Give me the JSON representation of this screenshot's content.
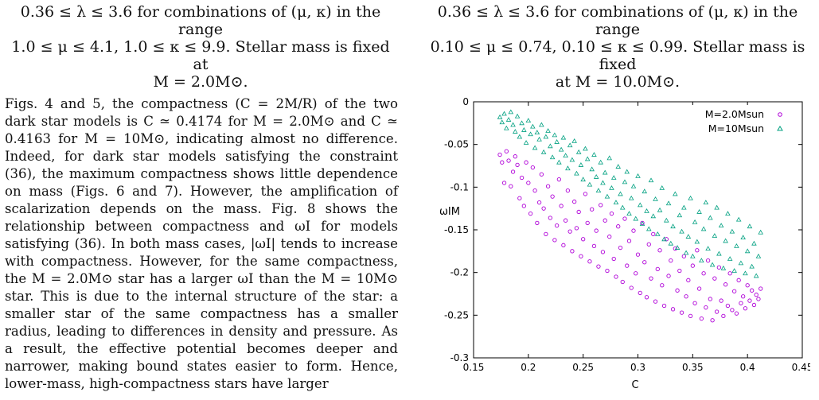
{
  "captions": {
    "left": [
      "0.36 ≤ λ ≤ 3.6 for combinations of (μ, κ) in the range",
      "1.0 ≤ μ ≤ 4.1, 1.0 ≤ κ ≤ 9.9. Stellar mass is fixed at",
      "M = 2.0M⊙."
    ],
    "right": [
      "0.36 ≤ λ ≤ 3.6 for combinations of (μ, κ) in the range",
      "0.10 ≤ μ ≤ 0.74, 0.10 ≤ κ ≤ 0.99. Stellar mass is fixed",
      "at M = 10.0M⊙."
    ]
  },
  "body_text": "Figs. 4 and 5, the compactness (C = 2M/R) of the two dark star models is C ≃ 0.4174 for M = 2.0M⊙ and C ≃ 0.4163 for M = 10M⊙, indicating almost no difference. Indeed, for dark star models satisfying the constraint (36), the maximum compactness shows little dependence on mass (Figs. 6 and 7). However, the amplification of scalarization depends on the mass. Fig. 8 shows the relationship between compactness and ωI for models satisfying (36). In both mass cases, |ωI| tends to increase with compactness. However, for the same compactness, the M = 2.0M⊙ star has a larger ωI than the M = 10M⊙ star. This is due to the internal structure of the star: a smaller star of the same compactness has a smaller radius, leading to differences in density and pressure. As a result, the effective potential becomes deeper and narrower, making bound states easier to form. Hence, lower-mass, high-compactness stars have larger",
  "colors": {
    "series_2": "#b000d8",
    "series_10": "#00a080",
    "axis": "#000000"
  },
  "chart_data": {
    "type": "scatter",
    "xlabel": "C",
    "ylabel": "ωIM",
    "xlim": [
      0.15,
      0.45
    ],
    "ylim": [
      -0.3,
      0
    ],
    "xticks": [
      "0.15",
      "0.2",
      "0.25",
      "0.3",
      "0.35",
      "0.4",
      "0.45"
    ],
    "yticks": [
      "0",
      "-0.05",
      "-0.1",
      "-0.15",
      "-0.2",
      "-0.25",
      "-0.3"
    ],
    "legend_position": "top-right",
    "grid": false,
    "series": [
      {
        "name": "M=2.0Msun",
        "marker": "circle",
        "points": [
          [
            0.174,
            -0.062
          ],
          [
            0.176,
            -0.071
          ],
          [
            0.178,
            -0.095
          ],
          [
            0.18,
            -0.058
          ],
          [
            0.182,
            -0.069
          ],
          [
            0.184,
            -0.099
          ],
          [
            0.186,
            -0.082
          ],
          [
            0.188,
            -0.064
          ],
          [
            0.19,
            -0.074
          ],
          [
            0.192,
            -0.113
          ],
          [
            0.194,
            -0.089
          ],
          [
            0.196,
            -0.122
          ],
          [
            0.198,
            -0.071
          ],
          [
            0.2,
            -0.095
          ],
          [
            0.202,
            -0.131
          ],
          [
            0.204,
            -0.077
          ],
          [
            0.206,
            -0.104
          ],
          [
            0.208,
            -0.142
          ],
          [
            0.21,
            -0.118
          ],
          [
            0.212,
            -0.085
          ],
          [
            0.214,
            -0.125
          ],
          [
            0.216,
            -0.155
          ],
          [
            0.218,
            -0.099
          ],
          [
            0.22,
            -0.136
          ],
          [
            0.222,
            -0.111
          ],
          [
            0.224,
            -0.162
          ],
          [
            0.226,
            -0.145
          ],
          [
            0.228,
            -0.091
          ],
          [
            0.23,
            -0.122
          ],
          [
            0.232,
            -0.168
          ],
          [
            0.234,
            -0.139
          ],
          [
            0.236,
            -0.104
          ],
          [
            0.238,
            -0.152
          ],
          [
            0.24,
            -0.175
          ],
          [
            0.242,
            -0.117
          ],
          [
            0.244,
            -0.148
          ],
          [
            0.246,
            -0.129
          ],
          [
            0.248,
            -0.181
          ],
          [
            0.25,
            -0.161
          ],
          [
            0.252,
            -0.108
          ],
          [
            0.254,
            -0.142
          ],
          [
            0.256,
            -0.187
          ],
          [
            0.258,
            -0.126
          ],
          [
            0.26,
            -0.169
          ],
          [
            0.262,
            -0.151
          ],
          [
            0.264,
            -0.193
          ],
          [
            0.266,
            -0.121
          ],
          [
            0.268,
            -0.176
          ],
          [
            0.27,
            -0.139
          ],
          [
            0.272,
            -0.198
          ],
          [
            0.274,
            -0.158
          ],
          [
            0.276,
            -0.131
          ],
          [
            0.278,
            -0.184
          ],
          [
            0.28,
            -0.205
          ],
          [
            0.282,
            -0.146
          ],
          [
            0.284,
            -0.171
          ],
          [
            0.286,
            -0.211
          ],
          [
            0.288,
            -0.137
          ],
          [
            0.29,
            -0.192
          ],
          [
            0.292,
            -0.163
          ],
          [
            0.294,
            -0.218
          ],
          [
            0.296,
            -0.151
          ],
          [
            0.298,
            -0.201
          ],
          [
            0.3,
            -0.179
          ],
          [
            0.302,
            -0.224
          ],
          [
            0.304,
            -0.142
          ],
          [
            0.306,
            -0.188
          ],
          [
            0.308,
            -0.229
          ],
          [
            0.31,
            -0.167
          ],
          [
            0.312,
            -0.207
          ],
          [
            0.314,
            -0.155
          ],
          [
            0.316,
            -0.234
          ],
          [
            0.318,
            -0.196
          ],
          [
            0.32,
            -0.174
          ],
          [
            0.322,
            -0.215
          ],
          [
            0.324,
            -0.239
          ],
          [
            0.326,
            -0.161
          ],
          [
            0.328,
            -0.204
          ],
          [
            0.33,
            -0.186
          ],
          [
            0.332,
            -0.243
          ],
          [
            0.334,
            -0.172
          ],
          [
            0.336,
            -0.221
          ],
          [
            0.338,
            -0.198
          ],
          [
            0.34,
            -0.247
          ],
          [
            0.342,
            -0.181
          ],
          [
            0.344,
            -0.228
          ],
          [
            0.346,
            -0.209
          ],
          [
            0.348,
            -0.251
          ],
          [
            0.35,
            -0.192
          ],
          [
            0.352,
            -0.236
          ],
          [
            0.354,
            -0.174
          ],
          [
            0.356,
            -0.219
          ],
          [
            0.358,
            -0.254
          ],
          [
            0.36,
            -0.201
          ],
          [
            0.362,
            -0.241
          ],
          [
            0.364,
            -0.186
          ],
          [
            0.366,
            -0.231
          ],
          [
            0.368,
            -0.256
          ],
          [
            0.37,
            -0.207
          ],
          [
            0.372,
            -0.246
          ],
          [
            0.374,
            -0.194
          ],
          [
            0.376,
            -0.233
          ],
          [
            0.378,
            -0.251
          ],
          [
            0.38,
            -0.214
          ],
          [
            0.382,
            -0.239
          ],
          [
            0.384,
            -0.201
          ],
          [
            0.386,
            -0.244
          ],
          [
            0.388,
            -0.222
          ],
          [
            0.39,
            -0.248
          ],
          [
            0.392,
            -0.209
          ],
          [
            0.394,
            -0.236
          ],
          [
            0.396,
            -0.228
          ],
          [
            0.398,
            -0.242
          ],
          [
            0.4,
            -0.215
          ],
          [
            0.402,
            -0.233
          ],
          [
            0.404,
            -0.221
          ],
          [
            0.406,
            -0.238
          ],
          [
            0.408,
            -0.226
          ],
          [
            0.41,
            -0.231
          ],
          [
            0.412,
            -0.219
          ]
        ]
      },
      {
        "name": "M=10Msun",
        "marker": "triangle",
        "points": [
          [
            0.174,
            -0.018
          ],
          [
            0.176,
            -0.024
          ],
          [
            0.178,
            -0.014
          ],
          [
            0.18,
            -0.031
          ],
          [
            0.182,
            -0.021
          ],
          [
            0.184,
            -0.012
          ],
          [
            0.186,
            -0.027
          ],
          [
            0.188,
            -0.035
          ],
          [
            0.19,
            -0.017
          ],
          [
            0.192,
            -0.041
          ],
          [
            0.194,
            -0.025
          ],
          [
            0.196,
            -0.033
          ],
          [
            0.198,
            -0.048
          ],
          [
            0.2,
            -0.022
          ],
          [
            0.202,
            -0.038
          ],
          [
            0.204,
            -0.029
          ],
          [
            0.206,
            -0.054
          ],
          [
            0.208,
            -0.036
          ],
          [
            0.21,
            -0.044
          ],
          [
            0.212,
            -0.027
          ],
          [
            0.214,
            -0.059
          ],
          [
            0.216,
            -0.041
          ],
          [
            0.218,
            -0.034
          ],
          [
            0.22,
            -0.052
          ],
          [
            0.222,
            -0.065
          ],
          [
            0.224,
            -0.039
          ],
          [
            0.226,
            -0.047
          ],
          [
            0.228,
            -0.071
          ],
          [
            0.23,
            -0.056
          ],
          [
            0.232,
            -0.042
          ],
          [
            0.234,
            -0.063
          ],
          [
            0.236,
            -0.078
          ],
          [
            0.238,
            -0.051
          ],
          [
            0.24,
            -0.068
          ],
          [
            0.242,
            -0.046
          ],
          [
            0.244,
            -0.084
          ],
          [
            0.246,
            -0.059
          ],
          [
            0.248,
            -0.074
          ],
          [
            0.25,
            -0.091
          ],
          [
            0.252,
            -0.055
          ],
          [
            0.254,
            -0.067
          ],
          [
            0.256,
            -0.097
          ],
          [
            0.258,
            -0.079
          ],
          [
            0.26,
            -0.062
          ],
          [
            0.262,
            -0.088
          ],
          [
            0.264,
            -0.104
          ],
          [
            0.266,
            -0.071
          ],
          [
            0.268,
            -0.095
          ],
          [
            0.27,
            -0.083
          ],
          [
            0.272,
            -0.111
          ],
          [
            0.274,
            -0.066
          ],
          [
            0.276,
            -0.101
          ],
          [
            0.278,
            -0.089
          ],
          [
            0.28,
            -0.118
          ],
          [
            0.282,
            -0.076
          ],
          [
            0.284,
            -0.108
          ],
          [
            0.286,
            -0.124
          ],
          [
            0.288,
            -0.094
          ],
          [
            0.29,
            -0.082
          ],
          [
            0.292,
            -0.131
          ],
          [
            0.294,
            -0.113
          ],
          [
            0.296,
            -0.099
          ],
          [
            0.298,
            -0.137
          ],
          [
            0.3,
            -0.087
          ],
          [
            0.302,
            -0.121
          ],
          [
            0.304,
            -0.143
          ],
          [
            0.306,
            -0.105
          ],
          [
            0.308,
            -0.128
          ],
          [
            0.31,
            -0.149
          ],
          [
            0.312,
            -0.092
          ],
          [
            0.314,
            -0.134
          ],
          [
            0.316,
            -0.114
          ],
          [
            0.318,
            -0.155
          ],
          [
            0.32,
            -0.127
          ],
          [
            0.322,
            -0.101
          ],
          [
            0.324,
            -0.161
          ],
          [
            0.326,
            -0.139
          ],
          [
            0.328,
            -0.119
          ],
          [
            0.33,
            -0.166
          ],
          [
            0.332,
            -0.146
          ],
          [
            0.334,
            -0.108
          ],
          [
            0.336,
            -0.171
          ],
          [
            0.338,
            -0.133
          ],
          [
            0.34,
            -0.152
          ],
          [
            0.342,
            -0.124
          ],
          [
            0.344,
            -0.177
          ],
          [
            0.346,
            -0.158
          ],
          [
            0.348,
            -0.113
          ],
          [
            0.35,
            -0.181
          ],
          [
            0.352,
            -0.141
          ],
          [
            0.354,
            -0.164
          ],
          [
            0.356,
            -0.129
          ],
          [
            0.358,
            -0.186
          ],
          [
            0.36,
            -0.149
          ],
          [
            0.362,
            -0.118
          ],
          [
            0.364,
            -0.172
          ],
          [
            0.366,
            -0.136
          ],
          [
            0.368,
            -0.191
          ],
          [
            0.37,
            -0.157
          ],
          [
            0.372,
            -0.124
          ],
          [
            0.374,
            -0.178
          ],
          [
            0.376,
            -0.145
          ],
          [
            0.378,
            -0.195
          ],
          [
            0.38,
            -0.163
          ],
          [
            0.382,
            -0.131
          ],
          [
            0.384,
            -0.184
          ],
          [
            0.386,
            -0.152
          ],
          [
            0.388,
            -0.198
          ],
          [
            0.39,
            -0.169
          ],
          [
            0.392,
            -0.138
          ],
          [
            0.394,
            -0.189
          ],
          [
            0.396,
            -0.159
          ],
          [
            0.398,
            -0.201
          ],
          [
            0.4,
            -0.175
          ],
          [
            0.402,
            -0.146
          ],
          [
            0.404,
            -0.193
          ],
          [
            0.406,
            -0.166
          ],
          [
            0.408,
            -0.204
          ],
          [
            0.41,
            -0.181
          ],
          [
            0.412,
            -0.153
          ]
        ]
      }
    ]
  }
}
